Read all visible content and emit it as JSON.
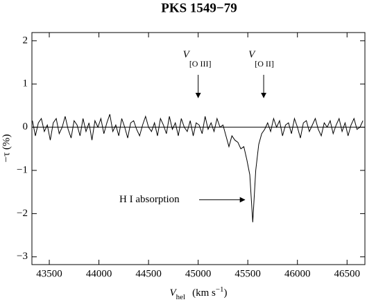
{
  "chart_data": {
    "type": "line",
    "title": "PKS 1549−79",
    "ylabel": "−τ (%)",
    "xlabel": {
      "main": "V",
      "sub": "hel",
      "unit": "(km s",
      "sup": "−1",
      "end": ")"
    },
    "xlim": [
      43325,
      46680
    ],
    "ylim": [
      -3.18,
      2.19
    ],
    "xticks": [
      43500,
      44000,
      44500,
      45000,
      45500,
      46000,
      46500
    ],
    "yticks": [
      -3,
      -2,
      -1,
      0,
      1,
      2
    ],
    "hline": 0,
    "color": "#000000",
    "annotations": [
      {
        "text": "V",
        "sub": "[O III]",
        "x": 45000
      },
      {
        "text": "V",
        "sub": "[O II]",
        "x": 45660
      },
      {
        "text": "H I absorption",
        "x": 45470,
        "y": -1.68
      }
    ],
    "x": [
      43330,
      43360,
      43390,
      43420,
      43450,
      43480,
      43510,
      43540,
      43570,
      43600,
      43630,
      43660,
      43690,
      43720,
      43750,
      43780,
      43810,
      43840,
      43870,
      43900,
      43930,
      43960,
      43990,
      44020,
      44050,
      44080,
      44110,
      44140,
      44170,
      44200,
      44230,
      44260,
      44290,
      44320,
      44350,
      44380,
      44410,
      44440,
      44470,
      44500,
      44530,
      44560,
      44590,
      44620,
      44650,
      44680,
      44710,
      44740,
      44770,
      44800,
      44830,
      44860,
      44890,
      44920,
      44950,
      44980,
      45010,
      45040,
      45070,
      45100,
      45130,
      45160,
      45190,
      45220,
      45250,
      45280,
      45310,
      45340,
      45370,
      45400,
      45430,
      45460,
      45490,
      45520,
      45550,
      45580,
      45610,
      45640,
      45670,
      45700,
      45730,
      45760,
      45790,
      45820,
      45850,
      45880,
      45910,
      45940,
      45970,
      46000,
      46030,
      46060,
      46090,
      46120,
      46150,
      46180,
      46210,
      46240,
      46270,
      46300,
      46330,
      46360,
      46390,
      46420,
      46450,
      46480,
      46510,
      46540,
      46570,
      46600,
      46630,
      46660
    ],
    "values": [
      0.15,
      -0.2,
      0.1,
      0.2,
      -0.1,
      0.05,
      -0.3,
      0.1,
      0.2,
      -0.15,
      0.0,
      0.25,
      -0.05,
      -0.25,
      0.15,
      0.05,
      -0.2,
      0.2,
      -0.1,
      0.1,
      -0.3,
      0.15,
      0.0,
      0.2,
      -0.15,
      0.1,
      0.3,
      -0.1,
      0.05,
      -0.2,
      0.2,
      0.0,
      -0.25,
      0.1,
      0.15,
      -0.05,
      -0.2,
      0.05,
      0.25,
      0.0,
      -0.1,
      0.1,
      -0.2,
      0.2,
      0.05,
      -0.15,
      0.25,
      -0.05,
      0.1,
      -0.2,
      0.2,
      0.0,
      -0.1,
      0.15,
      -0.2,
      0.1,
      0.05,
      -0.15,
      0.25,
      -0.05,
      0.1,
      -0.1,
      0.2,
      0.0,
      0.05,
      -0.2,
      -0.45,
      -0.2,
      -0.3,
      -0.35,
      -0.5,
      -0.45,
      -0.75,
      -1.1,
      -2.2,
      -1.0,
      -0.4,
      -0.15,
      -0.05,
      0.1,
      -0.1,
      0.2,
      0.0,
      0.15,
      -0.2,
      0.05,
      0.1,
      -0.15,
      0.2,
      0.0,
      -0.25,
      0.1,
      0.15,
      -0.1,
      0.05,
      0.2,
      -0.05,
      -0.2,
      0.1,
      0.0,
      0.15,
      -0.15,
      0.05,
      0.2,
      -0.1,
      0.1,
      -0.2,
      0.05,
      0.2,
      -0.05,
      0.0,
      0.15
    ]
  }
}
